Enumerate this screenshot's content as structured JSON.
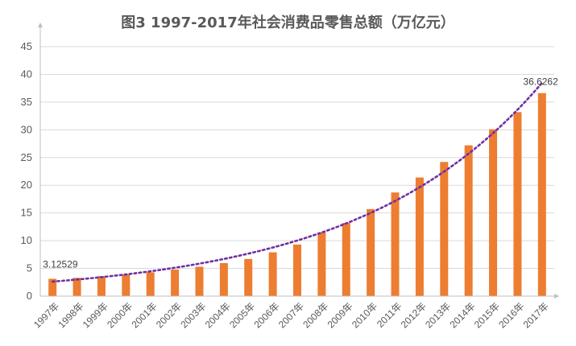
{
  "chart_data": {
    "type": "bar",
    "title": "图3  1997-2017年社会消费品零售总额（万亿元）",
    "categories": [
      "1997年",
      "1998年",
      "1999年",
      "2000年",
      "2001年",
      "2002年",
      "2003年",
      "2004年",
      "2005年",
      "2006年",
      "2007年",
      "2008年",
      "2009年",
      "2010年",
      "2011年",
      "2012年",
      "2013年",
      "2014年",
      "2015年",
      "2016年",
      "2017年"
    ],
    "series": [
      {
        "values": [
          3.12529,
          3.3,
          3.6,
          3.9,
          4.3,
          4.8,
          5.3,
          5.95,
          6.7,
          7.9,
          9.3,
          11.5,
          13.2,
          15.7,
          18.7,
          21.4,
          24.2,
          27.2,
          30.1,
          33.2,
          36.6262
        ]
      }
    ],
    "trendline": {
      "type": "exponential",
      "style": "dotted"
    },
    "data_labels": [
      {
        "text": "3.12529"
      },
      {
        "text": "36.6262"
      }
    ],
    "yticks": [
      "0",
      "5",
      "10",
      "15",
      "20",
      "25",
      "30",
      "35",
      "40",
      "45"
    ],
    "ylim": [
      0,
      45
    ],
    "grid": true,
    "xlabel": "",
    "ylabel": "",
    "colors": {
      "bar": "#ED7D31",
      "trend": "#7030A0",
      "grid": "#D9D9D9",
      "axis": "#BFBFBF",
      "text": "#595959"
    }
  }
}
